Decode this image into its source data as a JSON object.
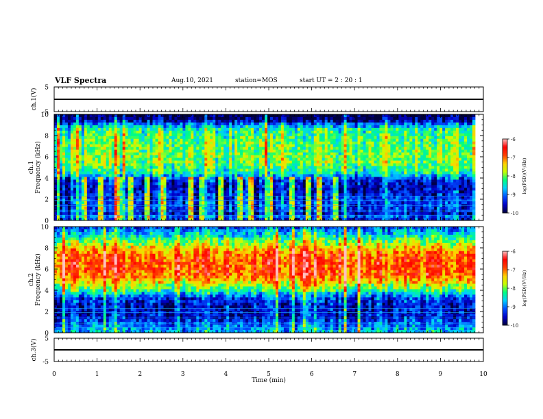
{
  "header": {
    "title": "VLF Spectra",
    "date": "Aug.10, 2021",
    "station": "station=MOS",
    "start": "start  UT =   2 : 20 : 1"
  },
  "colors": {
    "spectrogram_ramp": [
      "#00003a",
      "#0000c8",
      "#0050ff",
      "#00d0ff",
      "#00ff80",
      "#c8ff00",
      "#ffd000",
      "#ff4000",
      "#ff0000",
      "#ffc0c0"
    ]
  },
  "chart_data": [
    {
      "type": "line",
      "name": "ch.1 waveform",
      "ylabel": "ch.1(V)",
      "ylim": [
        -5,
        5
      ],
      "yticks": [
        "5",
        "-5"
      ],
      "xlim": [
        0,
        10
      ],
      "x": [
        0,
        10
      ],
      "values": [
        0,
        0
      ]
    },
    {
      "type": "heatmap",
      "name": "ch.1 spectrogram",
      "ylabel": "ch.1\nFrequency (kHz)",
      "ylim": [
        0,
        10
      ],
      "yticks": [
        "0",
        "2",
        "4",
        "6",
        "8",
        "10"
      ],
      "xlim": [
        0,
        10
      ],
      "colorbar": {
        "label": "log(PSD)(V²/Hz)",
        "ticks": [
          "-6",
          "-7",
          "-8",
          "-9",
          "-10"
        ],
        "range": [
          -10,
          -6
        ]
      },
      "band_profile": [
        [
          0.0,
          -9.8
        ],
        [
          0.3,
          -8.8
        ],
        [
          0.5,
          -9.6
        ],
        [
          1.0,
          -9.3
        ],
        [
          2.0,
          -9.3
        ],
        [
          3.0,
          -9.6
        ],
        [
          3.8,
          -9.4
        ],
        [
          4.5,
          -8.4
        ],
        [
          5.5,
          -8.0
        ],
        [
          6.5,
          -8.0
        ],
        [
          7.5,
          -8.1
        ],
        [
          8.5,
          -8.3
        ],
        [
          9.0,
          -8.9
        ],
        [
          9.5,
          -9.9
        ],
        [
          10.0,
          -10.0
        ]
      ],
      "bursts_min": [
        0.72,
        1.1,
        1.5,
        1.8,
        2.15,
        2.55,
        3.2,
        3.45,
        3.9,
        4.35,
        4.6,
        5.05,
        5.55,
        5.9,
        6.2,
        6.55
      ]
    },
    {
      "type": "heatmap",
      "name": "ch.2 spectrogram",
      "ylabel": "ch.2\nFrequency (kHz)",
      "ylim": [
        0,
        10
      ],
      "yticks": [
        "0",
        "2",
        "4",
        "6",
        "8",
        "10"
      ],
      "xlim": [
        0,
        10
      ],
      "colorbar": {
        "label": "log(PSD)(V²/Hz)",
        "ticks": [
          "-6",
          "-7",
          "-8",
          "-9",
          "-10"
        ],
        "range": [
          -10,
          -6
        ]
      },
      "band_profile": [
        [
          0.0,
          -8.6
        ],
        [
          0.6,
          -8.9
        ],
        [
          1.5,
          -9.5
        ],
        [
          2.5,
          -9.5
        ],
        [
          3.3,
          -9.2
        ],
        [
          4.0,
          -8.2
        ],
        [
          4.8,
          -7.4
        ],
        [
          5.5,
          -6.9
        ],
        [
          6.5,
          -6.8
        ],
        [
          7.5,
          -7.0
        ],
        [
          8.2,
          -7.6
        ],
        [
          9.0,
          -8.3
        ],
        [
          9.6,
          -8.8
        ],
        [
          10.0,
          -9.2
        ]
      ]
    },
    {
      "type": "line",
      "name": "ch.3 waveform",
      "ylabel": "ch.3(V)",
      "ylim": [
        -5,
        5
      ],
      "yticks": [
        "5",
        "-5"
      ],
      "xlim": [
        0,
        10
      ],
      "x": [
        0,
        10
      ],
      "values": [
        0,
        0
      ]
    }
  ],
  "xaxis": {
    "label": "Time  (min)",
    "ticks": [
      "0",
      "1",
      "2",
      "3",
      "4",
      "5",
      "6",
      "7",
      "8",
      "9",
      "10"
    ]
  }
}
